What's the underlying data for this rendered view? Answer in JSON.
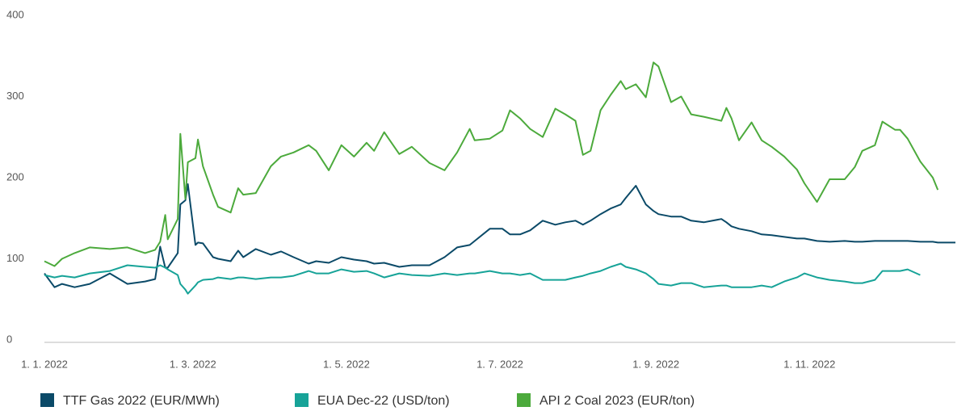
{
  "chart_data": {
    "type": "line",
    "x": [
      "2022-01-01",
      "2022-01-05",
      "2022-01-08",
      "2022-01-13",
      "2022-01-19",
      "2022-01-27",
      "2022-02-03",
      "2022-02-10",
      "2022-02-14",
      "2022-02-16",
      "2022-02-18",
      "2022-02-19",
      "2022-02-23",
      "2022-02-24",
      "2022-02-26",
      "2022-02-27",
      "2022-03-02",
      "2022-03-03",
      "2022-03-05",
      "2022-03-09",
      "2022-03-11",
      "2022-03-16",
      "2022-03-19",
      "2022-03-21",
      "2022-03-26",
      "2022-04-01",
      "2022-04-05",
      "2022-04-10",
      "2022-04-16",
      "2022-04-19",
      "2022-04-24",
      "2022-04-29",
      "2022-05-04",
      "2022-05-09",
      "2022-05-12",
      "2022-05-16",
      "2022-05-22",
      "2022-05-27",
      "2022-06-03",
      "2022-06-09",
      "2022-06-14",
      "2022-06-19",
      "2022-06-21",
      "2022-06-27",
      "2022-07-02",
      "2022-07-05",
      "2022-07-09",
      "2022-07-13",
      "2022-07-18",
      "2022-07-23",
      "2022-07-27",
      "2022-07-31",
      "2022-08-03",
      "2022-08-06",
      "2022-08-10",
      "2022-08-14",
      "2022-08-18",
      "2022-08-20",
      "2022-08-24",
      "2022-08-28",
      "2022-08-31",
      "2022-09-02",
      "2022-09-07",
      "2022-09-11",
      "2022-09-15",
      "2022-09-20",
      "2022-09-27",
      "2022-09-29",
      "2022-10-01",
      "2022-10-04",
      "2022-10-09",
      "2022-10-13",
      "2022-10-17",
      "2022-10-22",
      "2022-10-27",
      "2022-10-30",
      "2022-11-04",
      "2022-11-09",
      "2022-11-15",
      "2022-11-19",
      "2022-11-22",
      "2022-11-27",
      "2022-11-30",
      "2022-12-05",
      "2022-12-07",
      "2022-12-10",
      "2022-12-15",
      "2022-12-20",
      "2022-12-22",
      "2022-12-29"
    ],
    "series": [
      {
        "name": "TTF Gas 2022 (EUR/MWh)",
        "color": "#0b4a68",
        "values": [
          85,
          68,
          72,
          68,
          72,
          85,
          72,
          75,
          78,
          118,
          92,
          92,
          110,
          170,
          175,
          195,
          120,
          123,
          122,
          105,
          103,
          100,
          113,
          105,
          115,
          108,
          112,
          105,
          97,
          100,
          98,
          105,
          102,
          100,
          97,
          98,
          93,
          95,
          95,
          105,
          117,
          120,
          125,
          140,
          140,
          133,
          133,
          138,
          150,
          145,
          148,
          150,
          145,
          150,
          158,
          165,
          170,
          178,
          193,
          170,
          162,
          158,
          155,
          155,
          150,
          148,
          152,
          148,
          143,
          140,
          137,
          133,
          132,
          130,
          128,
          128,
          125,
          124,
          125,
          124,
          124,
          125,
          125,
          125,
          125,
          125,
          124,
          124,
          123,
          123
        ]
      },
      {
        "name": "EUA Dec-22 (USD/ton)",
        "color": "#17a398",
        "values": [
          83,
          80,
          82,
          80,
          85,
          88,
          95,
          93,
          92,
          95,
          92,
          90,
          83,
          72,
          65,
          60,
          70,
          74,
          77,
          78,
          80,
          78,
          80,
          80,
          78,
          80,
          80,
          82,
          88,
          85,
          85,
          90,
          87,
          88,
          85,
          80,
          85,
          83,
          82,
          85,
          83,
          85,
          85,
          88,
          85,
          85,
          83,
          85,
          77,
          77,
          77,
          80,
          82,
          85,
          88,
          93,
          97,
          93,
          90,
          85,
          78,
          72,
          70,
          73,
          73,
          68,
          70,
          70,
          68,
          68,
          68,
          70,
          68,
          75,
          80,
          85,
          80,
          77,
          75,
          73,
          73,
          77,
          88,
          88,
          88,
          90,
          83,
          null,
          null,
          null
        ]
      },
      {
        "name": "API 2 Coal 2023 (EUR/ton)",
        "color": "#4caa3c",
        "values": [
          100,
          94,
          103,
          110,
          117,
          115,
          117,
          110,
          114,
          124,
          157,
          127,
          152,
          257,
          177,
          222,
          227,
          250,
          217,
          182,
          167,
          160,
          190,
          182,
          184,
          217,
          229,
          234,
          243,
          236,
          212,
          243,
          229,
          246,
          236,
          259,
          232,
          241,
          221,
          212,
          234,
          263,
          249,
          251,
          261,
          286,
          276,
          263,
          253,
          288,
          281,
          273,
          231,
          236,
          286,
          305,
          322,
          312,
          318,
          302,
          345,
          340,
          296,
          303,
          281,
          278,
          273,
          289,
          276,
          249,
          271,
          249,
          241,
          229,
          213,
          196,
          173,
          201,
          201,
          216,
          236,
          243,
          272,
          262,
          262,
          251,
          223,
          203,
          188,
          null
        ]
      }
    ],
    "xticks": [
      {
        "value": "2022-01-01",
        "label": "1. 1. 2022"
      },
      {
        "value": "2022-03-01",
        "label": "1. 3. 2022"
      },
      {
        "value": "2022-05-01",
        "label": "1. 5. 2022"
      },
      {
        "value": "2022-07-01",
        "label": "1. 7. 2022"
      },
      {
        "value": "2022-09-01",
        "label": "1. 9. 2022"
      },
      {
        "value": "2022-11-01",
        "label": "1. 11. 2022"
      }
    ],
    "ylim": [
      0,
      400
    ],
    "yticks": [
      0,
      100,
      200,
      300,
      400
    ],
    "grid": false,
    "legend": "bottom"
  }
}
